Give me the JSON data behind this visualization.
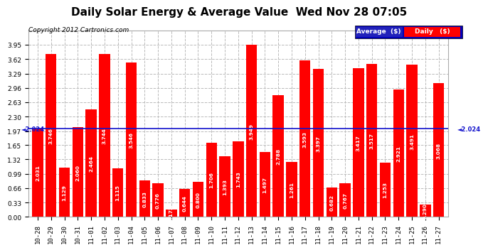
{
  "title": "Daily Solar Energy & Average Value  Wed Nov 28 07:05",
  "copyright": "Copyright 2012 Cartronics.com",
  "categories": [
    "10-28",
    "10-29",
    "10-30",
    "10-31",
    "11-01",
    "11-02",
    "11-03",
    "11-04",
    "11-05",
    "11-06",
    "11-07",
    "11-08",
    "11-09",
    "11-10",
    "11-11",
    "11-12",
    "11-13",
    "11-14",
    "11-15",
    "11-16",
    "11-17",
    "11-18",
    "11-19",
    "11-20",
    "11-21",
    "11-22",
    "11-23",
    "11-24",
    "11-25",
    "11-26",
    "11-27"
  ],
  "values": [
    2.031,
    3.746,
    1.129,
    2.06,
    2.464,
    3.744,
    1.115,
    3.546,
    0.833,
    0.776,
    0.172,
    0.644,
    0.8,
    1.706,
    1.393,
    1.743,
    3.949,
    1.497,
    2.788,
    1.261,
    3.593,
    3.397,
    0.682,
    0.767,
    3.417,
    3.517,
    1.253,
    2.921,
    3.491,
    0.29,
    3.068
  ],
  "average": 2.024,
  "bar_color": "#ff0000",
  "average_line_color": "#1111cc",
  "background_color": "#ffffff",
  "plot_bg_color": "#ffffff",
  "grid_color": "#bbbbbb",
  "ylim": [
    0,
    4.28
  ],
  "yticks": [
    0.0,
    0.33,
    0.66,
    0.99,
    1.32,
    1.65,
    1.97,
    2.3,
    2.63,
    2.96,
    3.29,
    3.62,
    3.95
  ],
  "title_fontsize": 11,
  "copyright_fontsize": 6.5,
  "bar_label_fontsize": 5.2,
  "tick_fontsize": 6.5,
  "legend_avg_color": "#2222bb",
  "legend_daily_color": "#ff0000",
  "legend_bg": "#0000bb"
}
